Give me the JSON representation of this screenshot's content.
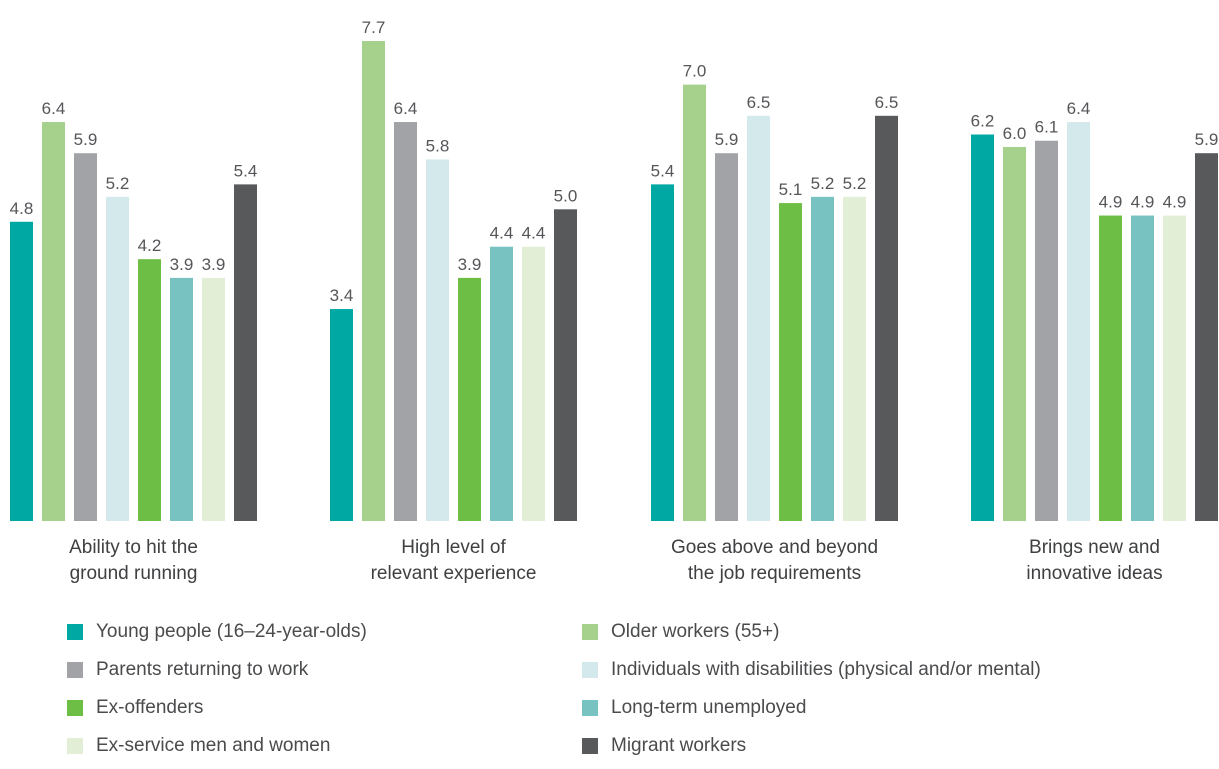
{
  "chart_data": {
    "type": "bar",
    "categories": [
      [
        "Ability to hit the",
        "ground running"
      ],
      [
        "High level of",
        "relevant experience"
      ],
      [
        "Goes above and beyond",
        "the job requirements"
      ],
      [
        "Brings new and",
        "innovative ideas"
      ]
    ],
    "series": [
      {
        "name": "Young people (16–24-year-olds)",
        "color": "#00a8a3",
        "values": [
          4.8,
          3.4,
          5.4,
          6.2
        ],
        "labels": [
          "4.8",
          "3.4",
          "5.4",
          "6.2"
        ]
      },
      {
        "name": "Older workers (55+)",
        "color": "#a6d18c",
        "values": [
          6.4,
          7.7,
          7.0,
          6.0
        ],
        "labels": [
          "6.4",
          "7.7",
          "7.0",
          "6.0"
        ]
      },
      {
        "name": "Parents returning to work",
        "color": "#a2a3a6",
        "values": [
          5.9,
          6.4,
          5.9,
          6.1
        ],
        "labels": [
          "5.9",
          "6.4",
          "5.9",
          "6.1"
        ]
      },
      {
        "name": "Individuals with disabilities (physical and/or mental)",
        "color": "#d3e9ec",
        "values": [
          5.2,
          5.8,
          6.5,
          6.4
        ],
        "labels": [
          "5.2",
          "5.8",
          "6.5",
          "6.4"
        ]
      },
      {
        "name": "Ex-offenders",
        "color": "#6cbe45",
        "values": [
          4.2,
          3.9,
          5.1,
          4.9
        ],
        "labels": [
          "4.2",
          "3.9",
          "5.1",
          "4.9"
        ]
      },
      {
        "name": "Long-term unemployed",
        "color": "#78c2c1",
        "values": [
          3.9,
          4.4,
          5.2,
          4.9
        ],
        "labels": [
          "3.9",
          "4.4",
          "5.2",
          "4.9"
        ]
      },
      {
        "name": "Ex-service men and women",
        "color": "#e2efd6",
        "values": [
          3.9,
          4.4,
          5.2,
          4.9
        ],
        "labels": [
          "3.9",
          "4.4",
          "5.2",
          "4.9"
        ]
      },
      {
        "name": "Migrant workers",
        "color": "#58595b",
        "values": [
          5.4,
          5.0,
          6.5,
          5.9
        ],
        "labels": [
          "5.4",
          "5.0",
          "6.5",
          "5.9"
        ]
      }
    ],
    "ylim": [
      0,
      7.7
    ],
    "grid": false,
    "legend_position": "bottom"
  }
}
